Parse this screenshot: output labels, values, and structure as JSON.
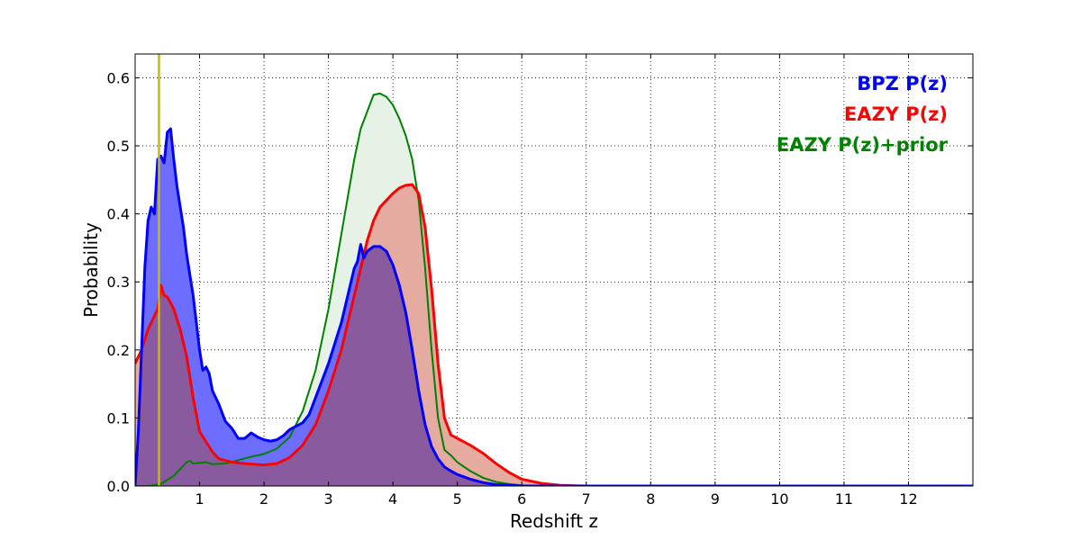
{
  "chart_data": {
    "type": "area",
    "xlabel": "Redshift z",
    "ylabel": "Probability",
    "xlim": [
      0,
      13
    ],
    "ylim": [
      0,
      0.635
    ],
    "x_ticks": [
      1,
      2,
      3,
      4,
      5,
      6,
      7,
      8,
      9,
      10,
      11,
      12
    ],
    "y_ticks": [
      0.0,
      0.1,
      0.2,
      0.3,
      0.4,
      0.5,
      0.6
    ],
    "y_tick_labels": [
      "0.0",
      "0.1",
      "0.2",
      "0.3",
      "0.4",
      "0.5",
      "0.6"
    ],
    "grid": true,
    "legend_placement": "top-right",
    "vertical_line": {
      "x": 0.37,
      "color": "#bfbf00"
    },
    "series": [
      {
        "name": "EAZY P(z)+prior",
        "color": "#008000",
        "fill": "#e5f2e5",
        "x": [
          0.0,
          0.2,
          0.4,
          0.6,
          0.8,
          0.85,
          0.9,
          1.0,
          1.1,
          1.2,
          1.4,
          1.6,
          1.8,
          2.0,
          2.2,
          2.4,
          2.6,
          2.8,
          3.0,
          3.2,
          3.4,
          3.5,
          3.6,
          3.7,
          3.8,
          3.9,
          4.0,
          4.1,
          4.2,
          4.3,
          4.4,
          4.5,
          4.6,
          4.7,
          4.8,
          4.9,
          5.0,
          5.2,
          5.4,
          5.6,
          5.8,
          6.0,
          6.2,
          6.5,
          7.0,
          8.0,
          10.0,
          13.0
        ],
        "values": [
          0.0,
          0.0,
          0.003,
          0.015,
          0.035,
          0.037,
          0.033,
          0.034,
          0.035,
          0.032,
          0.033,
          0.038,
          0.043,
          0.047,
          0.055,
          0.072,
          0.11,
          0.17,
          0.26,
          0.37,
          0.48,
          0.525,
          0.55,
          0.575,
          0.577,
          0.572,
          0.56,
          0.54,
          0.515,
          0.48,
          0.42,
          0.32,
          0.2,
          0.1,
          0.053,
          0.045,
          0.035,
          0.022,
          0.012,
          0.006,
          0.003,
          0.001,
          0.0005,
          0.0,
          0.0,
          0.0,
          0.0,
          0.0
        ]
      },
      {
        "name": "EAZY P(z)",
        "color": "#ff0000",
        "fill": "#e6aba0",
        "x": [
          0.0,
          0.1,
          0.2,
          0.3,
          0.35,
          0.4,
          0.45,
          0.5,
          0.6,
          0.7,
          0.8,
          0.9,
          1.0,
          1.1,
          1.2,
          1.3,
          1.5,
          1.7,
          2.0,
          2.2,
          2.4,
          2.6,
          2.8,
          3.0,
          3.2,
          3.4,
          3.6,
          3.7,
          3.8,
          4.0,
          4.1,
          4.2,
          4.3,
          4.4,
          4.5,
          4.6,
          4.7,
          4.8,
          4.9,
          5.0,
          5.2,
          5.4,
          5.6,
          5.8,
          6.0,
          6.3,
          6.6,
          7.0,
          8.0,
          13.0
        ],
        "values": [
          0.18,
          0.2,
          0.23,
          0.25,
          0.26,
          0.295,
          0.28,
          0.278,
          0.26,
          0.23,
          0.19,
          0.13,
          0.08,
          0.065,
          0.05,
          0.04,
          0.035,
          0.033,
          0.031,
          0.033,
          0.042,
          0.06,
          0.09,
          0.14,
          0.2,
          0.28,
          0.36,
          0.39,
          0.41,
          0.43,
          0.438,
          0.442,
          0.443,
          0.43,
          0.38,
          0.29,
          0.18,
          0.1,
          0.075,
          0.07,
          0.06,
          0.048,
          0.033,
          0.02,
          0.01,
          0.004,
          0.001,
          0.0,
          0.0,
          0.0
        ]
      },
      {
        "name": "BPZ P(z)",
        "color": "#0000ff",
        "fill": "#6d6dff",
        "x": [
          0.0,
          0.05,
          0.1,
          0.15,
          0.2,
          0.25,
          0.3,
          0.35,
          0.4,
          0.45,
          0.5,
          0.55,
          0.6,
          0.65,
          0.7,
          0.75,
          0.8,
          0.9,
          1.0,
          1.05,
          1.1,
          1.15,
          1.2,
          1.3,
          1.4,
          1.5,
          1.6,
          1.7,
          1.8,
          1.9,
          2.0,
          2.1,
          2.2,
          2.3,
          2.4,
          2.5,
          2.6,
          2.7,
          2.8,
          3.0,
          3.2,
          3.4,
          3.45,
          3.5,
          3.55,
          3.6,
          3.7,
          3.8,
          3.9,
          4.0,
          4.1,
          4.2,
          4.3,
          4.4,
          4.5,
          4.6,
          4.7,
          4.8,
          4.9,
          5.0,
          5.2,
          5.4,
          5.6,
          5.8,
          6.0,
          6.3,
          13.0
        ],
        "values": [
          0.0,
          0.08,
          0.2,
          0.32,
          0.39,
          0.41,
          0.4,
          0.48,
          0.485,
          0.475,
          0.52,
          0.525,
          0.48,
          0.44,
          0.41,
          0.38,
          0.34,
          0.28,
          0.2,
          0.17,
          0.175,
          0.165,
          0.14,
          0.12,
          0.095,
          0.085,
          0.07,
          0.07,
          0.078,
          0.072,
          0.068,
          0.066,
          0.068,
          0.074,
          0.083,
          0.088,
          0.093,
          0.105,
          0.13,
          0.18,
          0.24,
          0.32,
          0.33,
          0.355,
          0.335,
          0.345,
          0.352,
          0.352,
          0.345,
          0.325,
          0.295,
          0.255,
          0.2,
          0.14,
          0.09,
          0.058,
          0.04,
          0.028,
          0.022,
          0.017,
          0.01,
          0.005,
          0.002,
          0.001,
          0.0,
          0.0,
          0.0
        ]
      }
    ],
    "overlap_fill": "#8a5a9f",
    "legend": [
      {
        "label": "BPZ P(z)",
        "color": "#0000ff"
      },
      {
        "label": "EAZY P(z)",
        "color": "#ff0000"
      },
      {
        "label": "EAZY P(z)+prior",
        "color": "#008000"
      }
    ]
  }
}
